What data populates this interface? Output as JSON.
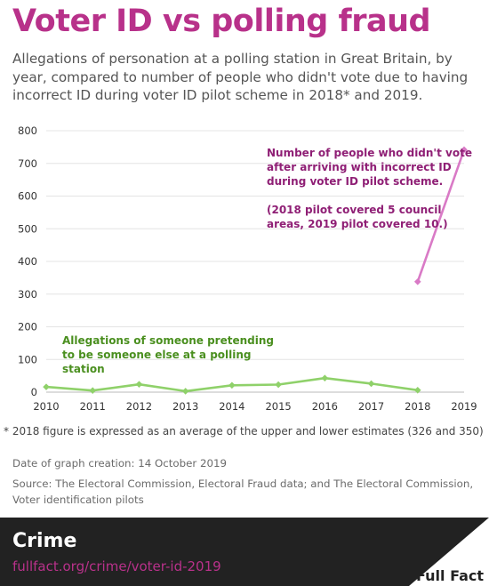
{
  "header": {
    "title": "Voter ID vs polling fraud",
    "subtitle": "Allegations of personation at a polling station in Great Britain, by year, compared to number of people who didn't vote due to having incorrect ID during voter ID pilot scheme in 2018* and 2019."
  },
  "chart_data": {
    "type": "line",
    "x": [
      2010,
      2011,
      2012,
      2013,
      2014,
      2015,
      2016,
      2017,
      2018,
      2019
    ],
    "ylim": [
      0,
      800
    ],
    "yticks": [
      "0",
      "100",
      "200",
      "300",
      "400",
      "500",
      "600",
      "700",
      "800"
    ],
    "grid": true,
    "series": [
      {
        "color": "#8fd16a",
        "x": [
          2010,
          2011,
          2012,
          2013,
          2014,
          2015,
          2016,
          2017,
          2018
        ],
        "values": [
          16,
          5,
          24,
          3,
          21,
          23,
          43,
          26,
          6
        ]
      },
      {
        "color": "#d97ac6",
        "x": [
          2018,
          2019
        ],
        "values": [
          338,
          742
        ]
      }
    ],
    "annotations": {
      "green_label": [
        "Allegations of someone pretending",
        "to be someone else at a polling",
        "station"
      ],
      "pink_label": [
        "Number of people who didn't vote",
        "after arriving with incorrect ID",
        "during voter ID pilot scheme.",
        "",
        "(2018 pilot covered 5 council",
        "areas, 2019 pilot covered 10.)"
      ],
      "green_color": "#4a8f1f",
      "pink_color": "#8f1f75"
    }
  },
  "notes": {
    "footnote": "*  2018 figure is expressed as an average of the upper and lower estimates (326 and 350)",
    "date": "Date of graph creation: 14 October 2019",
    "source": "Source: The Electoral Commission, Electoral Fraud data; and The Electoral Commission, Voter identification pilots"
  },
  "footer": {
    "category": "Crime",
    "url": "fullfact.org/crime/voter-id-2019",
    "logo_text": "Full Fact"
  }
}
